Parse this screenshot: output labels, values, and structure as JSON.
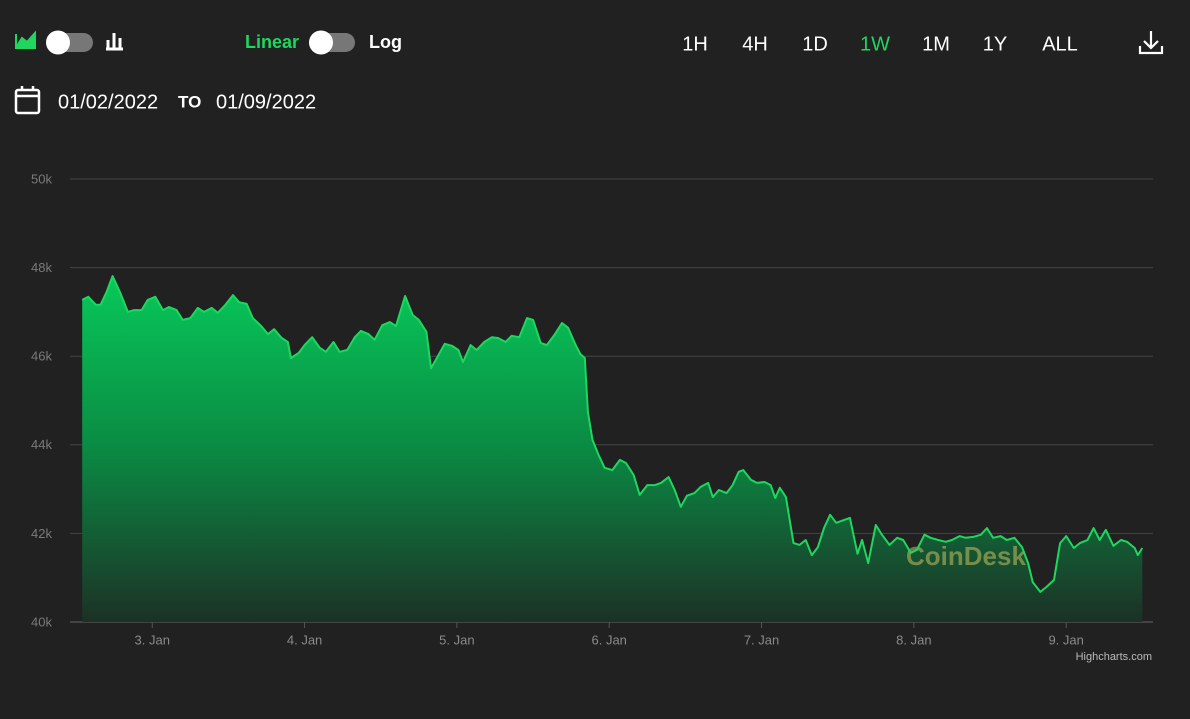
{
  "toolbar": {
    "scale_linear": "Linear",
    "scale_log": "Log",
    "ranges": [
      "1H",
      "4H",
      "1D",
      "1W",
      "1M",
      "1Y",
      "ALL"
    ],
    "active_range": "1W"
  },
  "date_range": {
    "from": "01/02/2022",
    "to_label": "TO",
    "to": "01/09/2022"
  },
  "chart_data": {
    "type": "area",
    "color": "#1fd65f",
    "grid": true,
    "credit": "Highcharts.com",
    "watermark": "CoinDesk",
    "xlim": [
      2.46,
      9.57
    ],
    "xticks": [
      {
        "value": 3,
        "label": "3. Jan"
      },
      {
        "value": 4,
        "label": "4. Jan"
      },
      {
        "value": 5,
        "label": "5. Jan"
      },
      {
        "value": 6,
        "label": "6. Jan"
      },
      {
        "value": 7,
        "label": "7. Jan"
      },
      {
        "value": 8,
        "label": "8. Jan"
      },
      {
        "value": 9,
        "label": "9. Jan"
      }
    ],
    "ylim": [
      40000,
      50000
    ],
    "yticks": [
      {
        "value": 40000,
        "label": "40k"
      },
      {
        "value": 42000,
        "label": "42k"
      },
      {
        "value": 44000,
        "label": "44k"
      },
      {
        "value": 46000,
        "label": "46k"
      },
      {
        "value": 48000,
        "label": "48k"
      },
      {
        "value": 50000,
        "label": "50k"
      }
    ],
    "x": [
      2.54,
      2.58,
      2.63,
      2.66,
      2.7,
      2.74,
      2.79,
      2.84,
      2.88,
      2.93,
      2.97,
      3.02,
      3.07,
      3.11,
      3.16,
      3.2,
      3.25,
      3.3,
      3.34,
      3.39,
      3.43,
      3.48,
      3.53,
      3.57,
      3.62,
      3.66,
      3.71,
      3.76,
      3.8,
      3.85,
      3.89,
      3.91,
      3.96,
      4.0,
      4.05,
      4.1,
      4.14,
      4.19,
      4.23,
      4.28,
      4.33,
      4.37,
      4.42,
      4.46,
      4.51,
      4.56,
      4.6,
      4.66,
      4.71,
      4.75,
      4.8,
      4.83,
      4.88,
      4.92,
      4.97,
      5.01,
      5.04,
      5.09,
      5.13,
      5.18,
      5.23,
      5.27,
      5.32,
      5.36,
      5.41,
      5.46,
      5.5,
      5.55,
      5.59,
      5.64,
      5.69,
      5.73,
      5.78,
      5.81,
      5.84,
      5.86,
      5.89,
      5.93,
      5.97,
      6.02,
      6.07,
      6.11,
      6.16,
      6.2,
      6.25,
      6.3,
      6.34,
      6.39,
      6.43,
      6.47,
      6.51,
      6.56,
      6.6,
      6.65,
      6.68,
      6.72,
      6.77,
      6.81,
      6.85,
      6.88,
      6.93,
      6.97,
      7.02,
      7.06,
      7.09,
      7.12,
      7.16,
      7.21,
      7.25,
      7.29,
      7.33,
      7.37,
      7.41,
      7.45,
      7.49,
      7.54,
      7.58,
      7.63,
      7.66,
      7.7,
      7.75,
      7.79,
      7.84,
      7.89,
      7.93,
      7.98,
      8.02,
      8.07,
      8.11,
      8.16,
      8.21,
      8.25,
      8.3,
      8.34,
      8.39,
      8.44,
      8.48,
      8.52,
      8.57,
      8.61,
      8.66,
      8.71,
      8.75,
      8.78,
      8.83,
      8.87,
      8.92,
      8.96,
      9.0,
      9.05,
      9.09,
      9.14,
      9.18,
      9.22,
      9.26,
      9.31,
      9.36,
      9.4,
      9.45,
      9.47,
      9.5
    ],
    "values": [
      47270,
      47340,
      47160,
      47160,
      47450,
      47810,
      47430,
      47000,
      47040,
      47040,
      47270,
      47340,
      47040,
      47110,
      47040,
      46820,
      46860,
      47090,
      47000,
      47090,
      46980,
      47160,
      47380,
      47220,
      47180,
      46860,
      46700,
      46500,
      46610,
      46410,
      46320,
      45960,
      46070,
      46250,
      46430,
      46190,
      46100,
      46320,
      46100,
      46140,
      46430,
      46570,
      46500,
      46370,
      46700,
      46770,
      46680,
      47360,
      46930,
      46820,
      46550,
      45730,
      46030,
      46280,
      46230,
      46140,
      45870,
      46250,
      46140,
      46320,
      46430,
      46410,
      46320,
      46460,
      46430,
      46860,
      46820,
      46300,
      46250,
      46480,
      46750,
      46640,
      46250,
      46050,
      45960,
      44740,
      44110,
      43770,
      43480,
      43430,
      43660,
      43590,
      43320,
      42870,
      43090,
      43090,
      43140,
      43270,
      42980,
      42600,
      42850,
      42910,
      43050,
      43140,
      42820,
      42980,
      42910,
      43090,
      43390,
      43430,
      43210,
      43140,
      43160,
      43090,
      42800,
      43030,
      42820,
      41780,
      41740,
      41850,
      41510,
      41690,
      42120,
      42420,
      42240,
      42300,
      42350,
      41540,
      41850,
      41330,
      42190,
      41970,
      41740,
      41900,
      41850,
      41560,
      41630,
      41970,
      41900,
      41850,
      41810,
      41850,
      41940,
      41900,
      41920,
      41970,
      42120,
      41900,
      41940,
      41850,
      41900,
      41690,
      41330,
      40900,
      40680,
      40790,
      40950,
      41780,
      41940,
      41670,
      41780,
      41850,
      42120,
      41850,
      42080,
      41720,
      41850,
      41810,
      41670,
      41510,
      41670
    ]
  }
}
